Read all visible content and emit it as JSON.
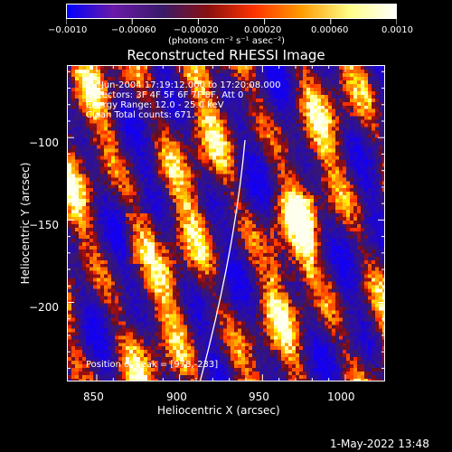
{
  "colorbar": {
    "tick_labels": [
      "−0.0010",
      "−0.00060",
      "−0.00020",
      "0.00020",
      "0.00060",
      "0.0010"
    ],
    "units": "(photons cm⁻² s⁻¹ asec⁻²)",
    "range": [
      -0.001,
      0.001
    ],
    "colors": [
      "#0000ff",
      "#6a1aa8",
      "#3a1a6a",
      "#8a1010",
      "#ff3300",
      "#ff9900",
      "#ffff88",
      "#ffffff"
    ]
  },
  "title": "Reconstructed RHESSI Image",
  "annotation": {
    "line1": "28-Jun-2004 17:19:12.000 to 17:20:08.000",
    "line2": "Detectors: 3F 4F 5F 6F 7F 8F, Att 0",
    "line3": "Energy Range: 12.0 - 25.0 keV",
    "line4": "Clean    Total counts: 671.",
    "peak": "Position of Peak = [978,-233]"
  },
  "axes": {
    "xlabel": "Heliocentric X (arcsec)",
    "ylabel": "Heliocentric Y (arcsec)",
    "x_ticks": [
      "850",
      "900",
      "950",
      "1000"
    ],
    "y_ticks": [
      "−100",
      "−150",
      "−200"
    ],
    "x_range": [
      832,
      1024
    ],
    "y_range": [
      -248,
      -56
    ]
  },
  "footer": {
    "timestamp": "1-May-2022 13:48"
  }
}
